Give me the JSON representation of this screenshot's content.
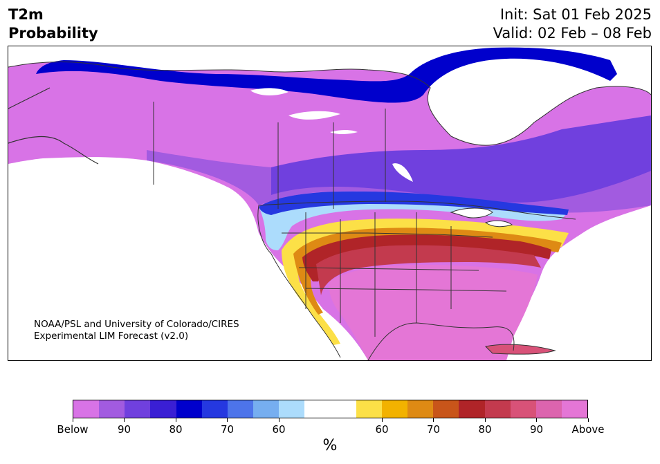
{
  "header": {
    "title_line1": "T2m",
    "title_line2": "Probability",
    "init": "Init: Sat 01 Feb 2025",
    "valid": "Valid: 02 Feb – 08 Feb"
  },
  "credit": {
    "line1": "NOAA/PSL and University of Colorado/CIRES",
    "line2": "Experimental LIM Forecast (v2.0)"
  },
  "colorbar": {
    "colors": [
      "#d873e6",
      "#a25be0",
      "#7040de",
      "#3a1fd4",
      "#0000cc",
      "#2538e0",
      "#4d74ea",
      "#76aef0",
      "#acdcfc",
      "#ffffff",
      "#ffffff",
      "#fce047",
      "#f2b200",
      "#de8a14",
      "#c8551a",
      "#b02428",
      "#c33a4e",
      "#d85278",
      "#dc64ae",
      "#e476d6"
    ],
    "labels": [
      "Below",
      "90",
      "80",
      "70",
      "60",
      "60",
      "70",
      "80",
      "90",
      "Above"
    ],
    "unit": "%"
  },
  "palette": {
    "below_extreme": "#d873e6",
    "below_strong": "#7040de",
    "below_mid": "#0000cc",
    "below_weak": "#acdcfc",
    "above_weak": "#fce047",
    "above_mid": "#c8551a",
    "above_strong": "#c33a4e",
    "above_extreme": "#e476d6",
    "coastline": "#333333"
  }
}
